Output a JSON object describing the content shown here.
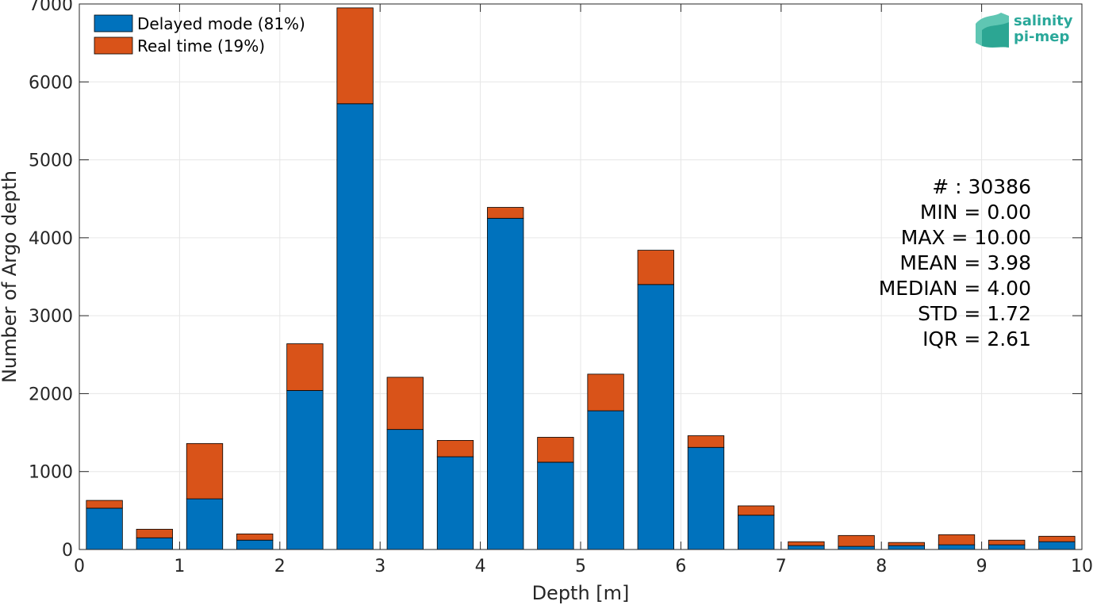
{
  "chart_data": {
    "type": "bar",
    "stacked": true,
    "xlabel": "Depth [m]",
    "ylabel": "Number of Argo depth",
    "xlim": [
      0,
      10
    ],
    "ylim": [
      0,
      7000
    ],
    "xticks": [
      0,
      1,
      2,
      3,
      4,
      5,
      6,
      7,
      8,
      9,
      10
    ],
    "yticks": [
      0,
      1000,
      2000,
      3000,
      4000,
      5000,
      6000,
      7000
    ],
    "grid": true,
    "legend_position": "top-left",
    "bin_edges": [
      0,
      0.5,
      1,
      1.5,
      2,
      2.5,
      3,
      3.5,
      4,
      4.5,
      5,
      5.5,
      6,
      6.5,
      7,
      7.5,
      8,
      8.5,
      9,
      9.5,
      10
    ],
    "series": [
      {
        "name": "Delayed mode (81%)",
        "color": "#0072BD",
        "values": [
          530,
          150,
          650,
          120,
          2040,
          5720,
          1540,
          1190,
          4250,
          1120,
          1780,
          3400,
          1310,
          440,
          50,
          40,
          50,
          60,
          60,
          100
        ]
      },
      {
        "name": "Real time (19%)",
        "color": "#D95319",
        "values": [
          100,
          110,
          710,
          80,
          600,
          1230,
          670,
          210,
          140,
          320,
          470,
          440,
          150,
          120,
          50,
          140,
          40,
          130,
          60,
          70
        ]
      }
    ],
    "stats": [
      "# : 30386",
      "MIN = 0.00",
      "MAX =  10.00",
      "MEAN = 3.98",
      "MEDIAN = 4.00",
      "STD = 1.72",
      "IQR = 2.61"
    ]
  },
  "logo": {
    "line1": "salinity",
    "line2": "pi-mep",
    "color": "#2aa89a"
  }
}
